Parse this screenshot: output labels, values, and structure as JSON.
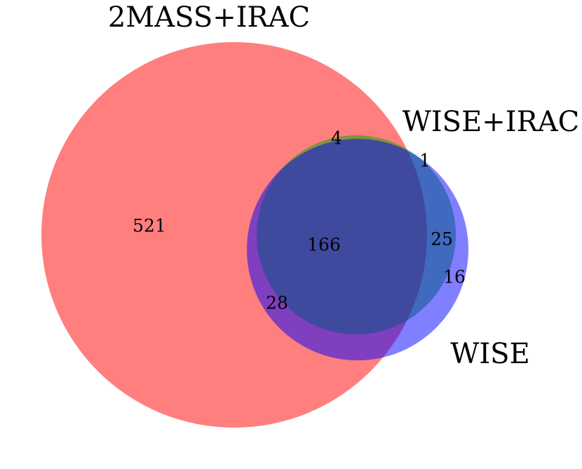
{
  "chart_data": {
    "type": "venn",
    "sets": [
      {
        "name": "2MASS+IRAC",
        "color": "#ff0000"
      },
      {
        "name": "WISE+IRAC",
        "color": "#00aa00"
      },
      {
        "name": "WISE",
        "color": "#0000ff"
      }
    ],
    "regions": [
      {
        "sets": [
          "2MASS+IRAC"
        ],
        "value": 521
      },
      {
        "sets": [
          "2MASS+IRAC",
          "WISE+IRAC"
        ],
        "value": 4
      },
      {
        "sets": [
          "WISE+IRAC"
        ],
        "value": 1
      },
      {
        "sets": [
          "2MASS+IRAC",
          "WISE+IRAC",
          "WISE"
        ],
        "value": 166
      },
      {
        "sets": [
          "WISE+IRAC",
          "WISE"
        ],
        "value": 25
      },
      {
        "sets": [
          "WISE"
        ],
        "value": 16
      },
      {
        "sets": [
          "2MASS+IRAC",
          "WISE"
        ],
        "value": 28
      }
    ]
  }
}
